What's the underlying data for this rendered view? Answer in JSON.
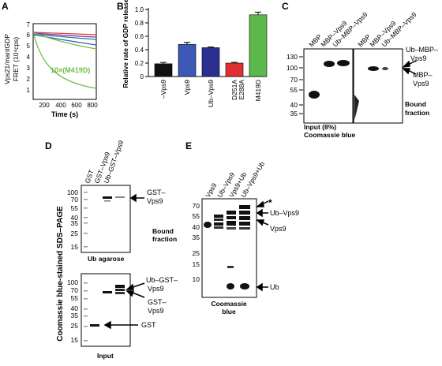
{
  "panelA": {
    "letter": "A",
    "ylabel1": "Vps21/mantGDP",
    "ylabel2": "FRET (10⁴cps)",
    "xlabel": "Time (s)",
    "annotation": "10×(M419D)",
    "yticks": [
      "7",
      "6",
      "5",
      "4",
      "3",
      "2",
      "1"
    ],
    "xticks": [
      "200",
      "400",
      "600",
      "800"
    ],
    "colors": {
      "red": "#e23b3b",
      "purple": "#6c4bb0",
      "teal": "#3a7a8c",
      "green": "#6fbe4a",
      "black": "#111111"
    }
  },
  "chart_data": {
    "type": "bar",
    "title": "",
    "ylabel": "Relative rate of GDP release",
    "ylim": [
      0,
      1.0
    ],
    "yticks": [
      "0",
      "0.2",
      "0.4",
      "0.6",
      "0.8",
      "1.0"
    ],
    "categories": [
      "–Vps9",
      "Vps9",
      "Ub–Vps9",
      "D251A E288A",
      "M419D"
    ],
    "category_lines": [
      [
        "–Vps9"
      ],
      [
        "Vps9"
      ],
      [
        "Ub–Vps9"
      ],
      [
        "D251A",
        "E288A"
      ],
      [
        "M419D"
      ]
    ],
    "values": [
      0.19,
      0.48,
      0.43,
      0.2,
      0.92
    ],
    "errors": [
      0.02,
      0.03,
      0.01,
      0.01,
      0.04
    ],
    "colors": [
      "#111111",
      "#3d57b5",
      "#2b2f8f",
      "#e03030",
      "#5cb84a"
    ]
  },
  "panelB": {
    "letter": "B"
  },
  "panelC": {
    "letter": "C",
    "lanes_left": [
      "MBP",
      "MBP–Vps9",
      "Ub–MBP–Vps9"
    ],
    "lanes_right": [
      "MBP",
      "MBP–Vps9",
      "Ub–MBP–Vps9"
    ],
    "markers": [
      "130",
      "100",
      "70",
      "55",
      "40",
      "35"
    ],
    "label_ub1": "Ub–MBP–",
    "label_ub2": "Vps9",
    "label_mbp1": "MBP–",
    "label_mbp2": "Vps9",
    "bound1": "Bound",
    "bound2": "fraction",
    "input": "Input (8%)",
    "stain": "Coomassie blue"
  },
  "panelD": {
    "letter": "D",
    "side_label": "Coomassie blue-stained SDS–PAGE",
    "lanes": [
      "GST",
      "GST–Vps9",
      "Ub–GST–Vps9"
    ],
    "markers_top": [
      "100",
      "70",
      "55",
      "40",
      "35",
      "25",
      "15"
    ],
    "markers_bottom": [
      "100",
      "70",
      "55",
      "40",
      "35",
      "25",
      "15"
    ],
    "label_gstvps9_1": "GST–",
    "label_gstvps9_2": "Vps9",
    "bound1": "Bound",
    "bound2": "fraction",
    "ub_agarose": "Ub agarose",
    "label_ubgst1": "Ub–GST–",
    "label_ubgst2": "Vps9",
    "label_gst2_1": "GST–",
    "label_gst2_2": "Vps9",
    "label_gst": "GST",
    "input": "Input"
  },
  "panelE": {
    "letter": "E",
    "lanes": [
      "Vps9",
      "Ub–Vps9",
      "Vps9+Ub",
      "Ub–Vps9+Ub"
    ],
    "markers": [
      "70",
      "55",
      "40",
      "35",
      "25",
      "15",
      "10"
    ],
    "star": "*",
    "label_ubvps9": "Ub–Vps9",
    "label_vps9": "Vps9",
    "label_ub": "Ub",
    "stain1": "Coomassie",
    "stain2": "blue"
  }
}
